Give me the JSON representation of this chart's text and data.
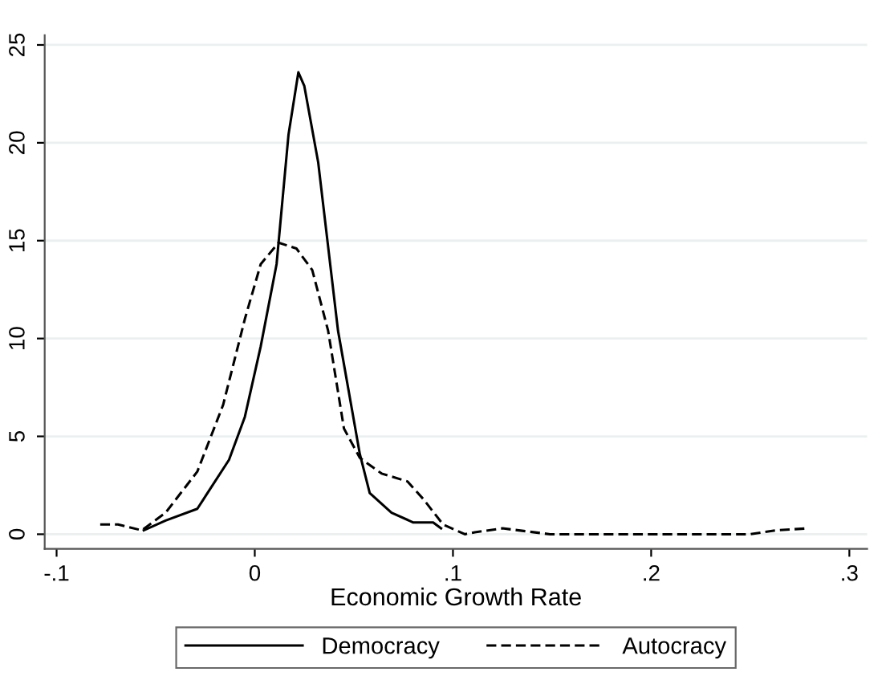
{
  "chart_data": {
    "type": "line",
    "xlabel": "Economic Growth Rate",
    "xlim": [
      -0.106,
      0.309
    ],
    "xticks": [
      {
        "value": -0.1,
        "label": "-.1"
      },
      0,
      {
        "value": 0.1,
        "label": ".1"
      },
      {
        "value": 0.2,
        "label": ".2"
      },
      {
        "value": 0.3,
        "label": ".3"
      }
    ],
    "ylim": [
      -0.75,
      25.5
    ],
    "yticks": [
      0,
      5,
      10,
      15,
      20,
      25
    ],
    "grid": "y",
    "legend": "bottom",
    "series": [
      {
        "name": "Democracy",
        "color": "#000000",
        "line_style": "solid",
        "x": [
          -0.056,
          -0.045,
          -0.029,
          -0.013,
          -0.005,
          0.003,
          0.011,
          0.017,
          0.022,
          0.025,
          0.032,
          0.042,
          0.053,
          0.058,
          0.069,
          0.08,
          0.09,
          0.094
        ],
        "values": [
          0.2,
          0.7,
          1.3,
          3.8,
          6.0,
          9.6,
          13.8,
          20.4,
          23.6,
          22.9,
          19.0,
          10.4,
          4.1,
          2.1,
          1.1,
          0.6,
          0.6,
          0.3
        ]
      },
      {
        "name": "Autocracy",
        "color": "#000000",
        "line_style": "dashed",
        "x": [
          -0.078,
          -0.069,
          -0.057,
          -0.045,
          -0.029,
          -0.016,
          -0.005,
          0.003,
          0.012,
          0.021,
          0.029,
          0.037,
          0.045,
          0.053,
          0.064,
          0.077,
          0.085,
          0.095,
          0.106,
          0.111,
          0.125,
          0.149,
          0.25,
          0.263,
          0.279
        ],
        "values": [
          0.5,
          0.5,
          0.2,
          1.1,
          3.2,
          6.6,
          11.0,
          13.8,
          14.9,
          14.6,
          13.5,
          10.4,
          5.4,
          3.9,
          3.1,
          2.7,
          1.8,
          0.5,
          0.0,
          0.1,
          0.3,
          0.0,
          0.0,
          0.2,
          0.3
        ]
      }
    ]
  }
}
